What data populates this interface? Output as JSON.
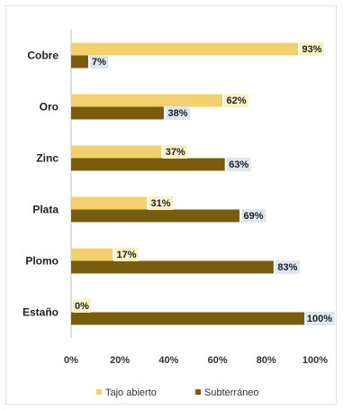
{
  "chart_data": {
    "type": "bar",
    "orientation": "horizontal",
    "categories": [
      "Cobre",
      "Oro",
      "Zinc",
      "Plata",
      "Plomo",
      "Estaño"
    ],
    "series": [
      {
        "name": "Tajo abierto",
        "values": [
          93,
          62,
          37,
          31,
          17,
          0
        ],
        "color": "#f2d06b"
      },
      {
        "name": "Subterráneo",
        "values": [
          7,
          38,
          63,
          69,
          83,
          100
        ],
        "color": "#7a5c0d"
      }
    ],
    "value_labels": {
      "Tajo abierto": [
        "93%",
        "62%",
        "37%",
        "31%",
        "17%",
        "0%"
      ],
      "Subterráneo": [
        "7%",
        "38%",
        "63%",
        "69%",
        "83%",
        "100%"
      ]
    },
    "label_backgrounds": {
      "Tajo abierto": "#fbf1c5",
      "Subterráneo": "#dde6f1"
    },
    "x_ticks": [
      "0%",
      "20%",
      "40%",
      "60%",
      "80%",
      "100%"
    ],
    "xlim": [
      0,
      100
    ],
    "grid": false,
    "legend_position": "bottom"
  }
}
